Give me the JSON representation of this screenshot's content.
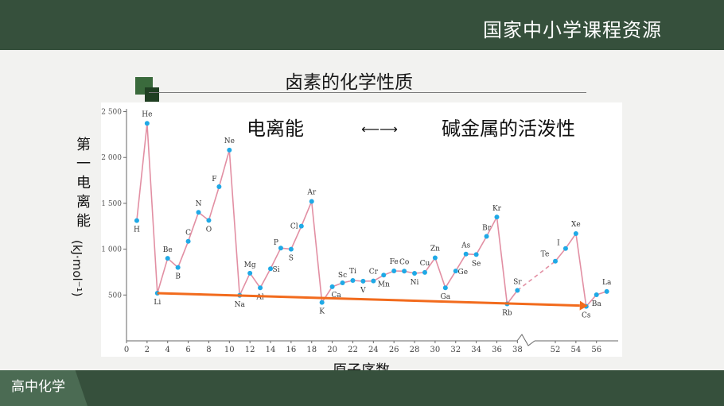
{
  "header": {
    "brand": "国家中小学课程资源"
  },
  "footer": {
    "subject": "高中化学"
  },
  "slide": {
    "title": "卤素的化学性质"
  },
  "relation": {
    "left": "电离能",
    "arrow": "⟵⟶",
    "right": "碱金属的活泼性"
  },
  "colors": {
    "header_bg": "#36503c",
    "series": "#e28fa3",
    "points": "#1fa9e6",
    "trend": "#f26b1d"
  },
  "chart_data": {
    "type": "line",
    "xlabel": "原子序数",
    "ylabel_text": "第一电离能",
    "ylabel_unit": "(kJ·mol⁻¹)",
    "ylim": [
      0,
      2600
    ],
    "yticks": [
      "2 500",
      "2 000",
      "1 500",
      "1 000",
      "500"
    ],
    "ytick_values": [
      2500,
      2000,
      1500,
      1000,
      500
    ],
    "xticks_left": [
      "0",
      "2",
      "4",
      "6",
      "8",
      "10",
      "12",
      "14",
      "16",
      "18",
      "20",
      "22",
      "24",
      "26",
      "28",
      "30",
      "32",
      "34",
      "36",
      "38"
    ],
    "xticks_right": [
      "52",
      "54",
      "56"
    ],
    "axis_break_between": [
      38,
      52
    ],
    "series": [
      {
        "values": [
          {
            "x": 1,
            "y": 1312,
            "label": "H"
          },
          {
            "x": 2,
            "y": 2372,
            "label": "He"
          },
          {
            "x": 3,
            "y": 520,
            "label": "Li"
          },
          {
            "x": 4,
            "y": 900,
            "label": "Be"
          },
          {
            "x": 5,
            "y": 801,
            "label": "B"
          },
          {
            "x": 6,
            "y": 1086,
            "label": "C"
          },
          {
            "x": 7,
            "y": 1402,
            "label": "N"
          },
          {
            "x": 8,
            "y": 1314,
            "label": "O"
          },
          {
            "x": 9,
            "y": 1681,
            "label": "F"
          },
          {
            "x": 10,
            "y": 2081,
            "label": "Ne"
          },
          {
            "x": 11,
            "y": 496,
            "label": "Na"
          },
          {
            "x": 12,
            "y": 738,
            "label": "Mg"
          },
          {
            "x": 13,
            "y": 578,
            "label": "Al"
          },
          {
            "x": 14,
            "y": 787,
            "label": "Si"
          },
          {
            "x": 15,
            "y": 1012,
            "label": "P"
          },
          {
            "x": 16,
            "y": 1000,
            "label": "S"
          },
          {
            "x": 17,
            "y": 1251,
            "label": "Cl"
          },
          {
            "x": 18,
            "y": 1521,
            "label": "Ar"
          },
          {
            "x": 19,
            "y": 419,
            "label": "K"
          },
          {
            "x": 20,
            "y": 590,
            "label": "Ca"
          },
          {
            "x": 21,
            "y": 633,
            "label": "Sc"
          },
          {
            "x": 22,
            "y": 659,
            "label": "Ti"
          },
          {
            "x": 23,
            "y": 651,
            "label": "V"
          },
          {
            "x": 24,
            "y": 653,
            "label": "Cr"
          },
          {
            "x": 25,
            "y": 717,
            "label": "Mn"
          },
          {
            "x": 26,
            "y": 763,
            "label": "Fe"
          },
          {
            "x": 27,
            "y": 760,
            "label": "Co"
          },
          {
            "x": 28,
            "y": 737,
            "label": "Ni"
          },
          {
            "x": 29,
            "y": 746,
            "label": "Cu"
          },
          {
            "x": 30,
            "y": 906,
            "label": "Zn"
          },
          {
            "x": 31,
            "y": 579,
            "label": "Ga"
          },
          {
            "x": 32,
            "y": 762,
            "label": "Ge"
          },
          {
            "x": 33,
            "y": 947,
            "label": "As"
          },
          {
            "x": 34,
            "y": 941,
            "label": "Se"
          },
          {
            "x": 35,
            "y": 1140,
            "label": "Br"
          },
          {
            "x": 36,
            "y": 1351,
            "label": "Kr"
          },
          {
            "x": 37,
            "y": 403,
            "label": "Rb"
          },
          {
            "x": 38,
            "y": 550,
            "label": "Sr"
          },
          {
            "x": 52,
            "y": 869,
            "label": "Te"
          },
          {
            "x": 53,
            "y": 1008,
            "label": "I"
          },
          {
            "x": 54,
            "y": 1170,
            "label": "Xe"
          },
          {
            "x": 55,
            "y": 376,
            "label": "Cs"
          },
          {
            "x": 56,
            "y": 503,
            "label": "Ba"
          },
          {
            "x": 57,
            "y": 538,
            "label": "La"
          }
        ]
      }
    ],
    "trend_arrow": {
      "from": {
        "x": 3,
        "y": 520
      },
      "to": {
        "x": 55,
        "y": 376
      }
    }
  }
}
